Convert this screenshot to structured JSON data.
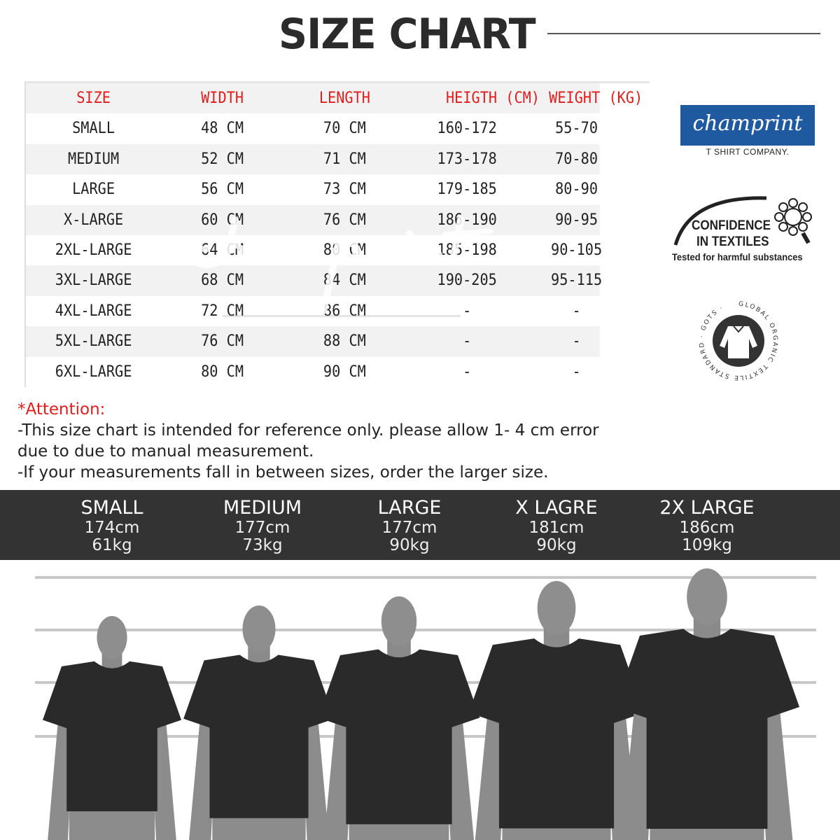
{
  "title": "SIZE CHART",
  "table": {
    "headers": [
      "SIZE",
      "WIDTH",
      "LENGTH",
      "HEIGTH (CM)",
      "WEIGHT (KG)"
    ],
    "rows": [
      [
        "SMALL",
        "48 CM",
        "70 CM",
        "160-172",
        "55-70"
      ],
      [
        "MEDIUM",
        "52 CM",
        "71 CM",
        "173-178",
        "70-80"
      ],
      [
        "LARGE",
        "56 CM",
        "73 CM",
        "179-185",
        "80-90"
      ],
      [
        "X-LARGE",
        "60 CM",
        "76 CM",
        "186-190",
        "90-95"
      ],
      [
        "2XL-LARGE",
        "64 CM",
        "80 CM",
        "185-198",
        "90-105"
      ],
      [
        "3XL-LARGE",
        "68 CM",
        "84 CM",
        "190-205",
        "95-115"
      ],
      [
        "4XL-LARGE",
        "72 CM",
        "86 CM",
        "-",
        "-"
      ],
      [
        "5XL-LARGE",
        "76 CM",
        "88 CM",
        "-",
        "-"
      ],
      [
        "6XL-LARGE",
        "80 CM",
        "90 CM",
        "-",
        "-"
      ]
    ],
    "header_color": "#e11e1e"
  },
  "watermark": {
    "script": "champrint",
    "sub": "T SHIRT COMPANY."
  },
  "brand": {
    "logo": "champrint",
    "sub": "T SHIRT COMPANY.",
    "color": "#1f5aa0"
  },
  "badges": {
    "confidence": [
      "CONFIDENCE",
      "IN TEXTILES",
      "Tested for harmful substances"
    ],
    "gots": "GLOBAL ORGANIC TEXTILE STANDARD · GOTS ·"
  },
  "attention": {
    "title": "*Attention:",
    "lines": [
      "-This size chart is intended for reference only. please allow 1- 4 cm error",
      "due to due to manual measurement.",
      "-If your measurements fall in between sizes, order the larger size."
    ]
  },
  "models": [
    {
      "size": "SMALL",
      "height": "174cm",
      "weight": "61kg"
    },
    {
      "size": "MEDIUM",
      "height": "177cm",
      "weight": "73kg"
    },
    {
      "size": "LARGE",
      "height": "177cm",
      "weight": "90kg"
    },
    {
      "size": "X LAGRE",
      "height": "181cm",
      "weight": "90kg"
    },
    {
      "size": "2X LARGE",
      "height": "186cm",
      "weight": "109kg"
    }
  ]
}
